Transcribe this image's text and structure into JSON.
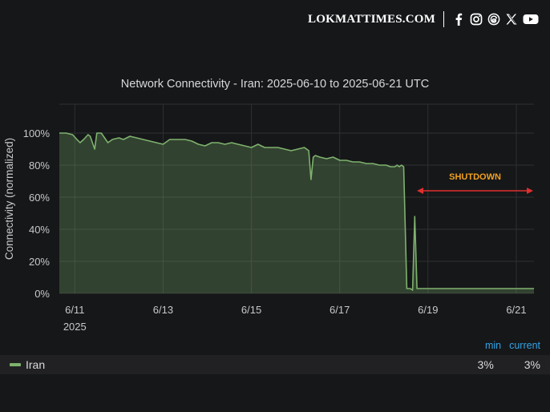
{
  "brand": {
    "name": "LOKMATTIMES.COM",
    "icons": [
      "facebook-icon",
      "instagram-icon",
      "threads-icon",
      "x-icon",
      "youtube-icon"
    ]
  },
  "chart_data": {
    "type": "area",
    "title": "Network Connectivity - Iran: 2025-06-10 to 2025-06-21 UTC",
    "ylabel": "Connectivity (normalized)",
    "xlabel": "",
    "x_ticks": [
      "6/11",
      "6/13",
      "6/15",
      "6/17",
      "6/19",
      "6/21"
    ],
    "x_tick_values": [
      1,
      3,
      5,
      7,
      9,
      11
    ],
    "x_year_label": "2025",
    "y_ticks": [
      "0%",
      "20%",
      "40%",
      "60%",
      "80%",
      "100%"
    ],
    "y_tick_values": [
      0,
      20,
      40,
      60,
      80,
      100
    ],
    "xlim": [
      0.65,
      11.4
    ],
    "ylim": [
      0,
      118
    ],
    "grid": true,
    "annotation": {
      "text": "SHUTDOWN",
      "x_start": 8.75,
      "x_end": 11.4,
      "y": 64
    },
    "series": [
      {
        "name": "Iran",
        "color": "#7eb26d",
        "x": [
          0.65,
          0.8,
          0.95,
          1.05,
          1.12,
          1.2,
          1.3,
          1.35,
          1.45,
          1.5,
          1.6,
          1.65,
          1.75,
          1.85,
          2.0,
          2.1,
          2.25,
          2.4,
          2.55,
          2.7,
          2.85,
          3.0,
          3.15,
          3.3,
          3.5,
          3.65,
          3.8,
          3.95,
          4.1,
          4.25,
          4.4,
          4.55,
          4.7,
          4.85,
          5.0,
          5.15,
          5.3,
          5.45,
          5.6,
          5.75,
          5.9,
          6.05,
          6.2,
          6.3,
          6.35,
          6.4,
          6.45,
          6.55,
          6.7,
          6.85,
          7.0,
          7.15,
          7.3,
          7.45,
          7.6,
          7.75,
          7.9,
          8.05,
          8.15,
          8.2,
          8.25,
          8.3,
          8.35,
          8.4,
          8.45,
          8.52,
          8.55,
          8.6,
          8.65,
          8.7,
          8.75,
          8.9,
          9.2,
          9.5,
          9.8,
          10.1,
          10.4,
          10.7,
          11.0,
          11.2,
          11.4
        ],
        "y": [
          100,
          100,
          99,
          96,
          94,
          96,
          99,
          98,
          90,
          100,
          100,
          98,
          94,
          96,
          97,
          96,
          98,
          97,
          96,
          95,
          94,
          93,
          96,
          96,
          96,
          95,
          93,
          92,
          94,
          94,
          93,
          94,
          93,
          92,
          91,
          93,
          91,
          91,
          91,
          90,
          89,
          90,
          91,
          89,
          71,
          85,
          86,
          85,
          84,
          85,
          83,
          83,
          82,
          82,
          81,
          81,
          80,
          80,
          79,
          79,
          79,
          80,
          79,
          80,
          79,
          3,
          3,
          3,
          2,
          48,
          3,
          3,
          3,
          3,
          3,
          3,
          3,
          3,
          3,
          3,
          3
        ]
      }
    ],
    "legend": {
      "placement": "bottom",
      "columns": [
        "min",
        "current"
      ],
      "rows": [
        {
          "name": "Iran",
          "min": "3%",
          "current": "3%"
        }
      ]
    }
  }
}
